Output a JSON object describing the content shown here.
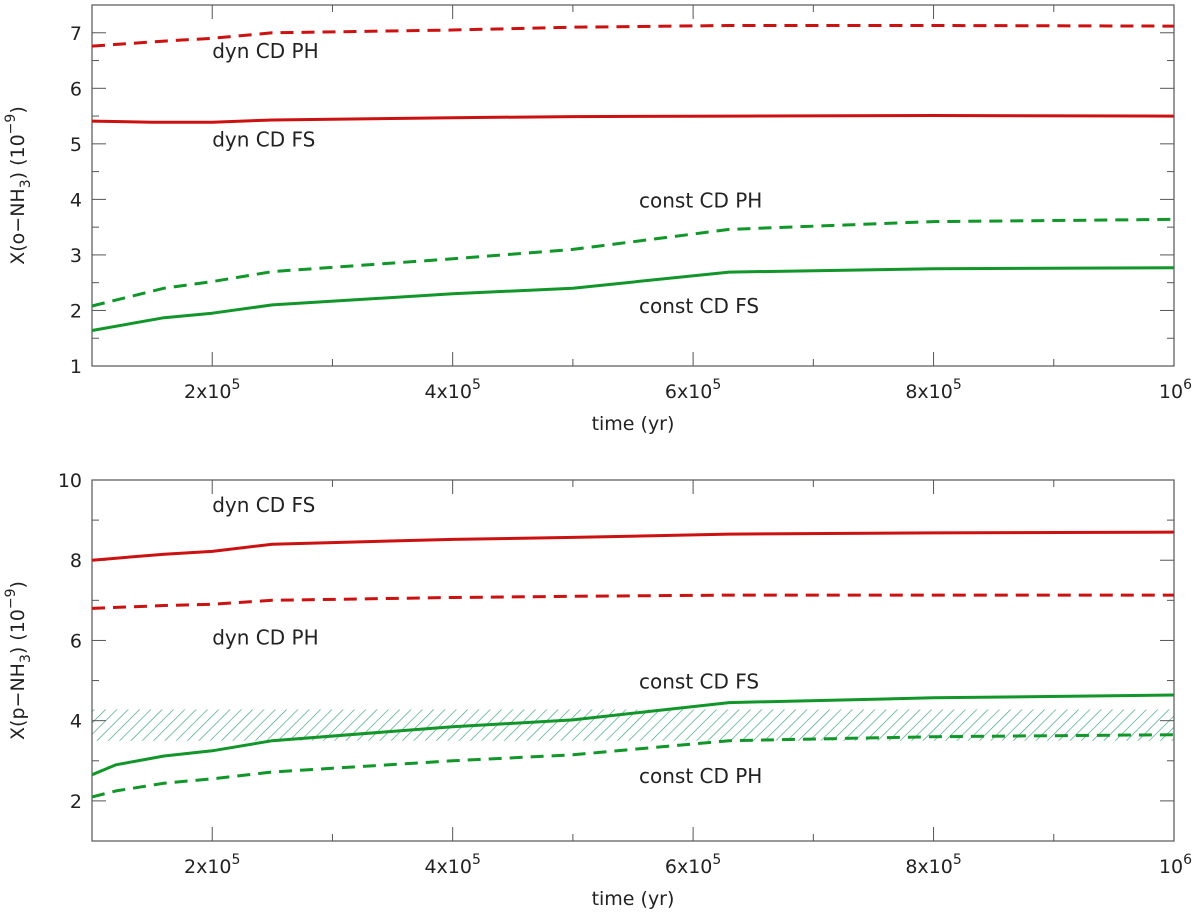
{
  "colors": {
    "red": "#cc1111",
    "green": "#11962a",
    "hatch": "#3aa17a",
    "axis": "#555555"
  },
  "chart_data": [
    {
      "type": "line",
      "title": "",
      "xlabel": "time (yr)",
      "ylabel_text": "X(o−NH",
      "ylabel_sub": "3",
      "ylabel_unit": ") (10",
      "ylabel_exp": "−9",
      "ylabel_close": ")",
      "xlim": [
        100000,
        1000000
      ],
      "ylim": [
        1,
        7.5
      ],
      "xticks": [
        {
          "value": 200000,
          "mantissa": "2x10",
          "exp": "5"
        },
        {
          "value": 400000,
          "mantissa": "4x10",
          "exp": "5"
        },
        {
          "value": 600000,
          "mantissa": "6x10",
          "exp": "5"
        },
        {
          "value": 800000,
          "mantissa": "8x10",
          "exp": "5"
        },
        {
          "value": 1000000,
          "mantissa": "10",
          "exp": "6"
        }
      ],
      "yticks": [
        1,
        2,
        3,
        4,
        5,
        6,
        7
      ],
      "yticklabels": [
        "1",
        "2",
        "3",
        "4",
        "5",
        "6",
        "7"
      ],
      "series": [
        {
          "name": "dyn CD PH",
          "color": "red",
          "style": "dashed",
          "x": [
            100000,
            160000,
            200000,
            250000,
            400000,
            500000,
            630000,
            800000,
            1000000
          ],
          "y": [
            6.76,
            6.85,
            6.9,
            7.0,
            7.05,
            7.1,
            7.13,
            7.13,
            7.12
          ]
        },
        {
          "name": "dyn CD FS",
          "color": "red",
          "style": "solid",
          "x": [
            100000,
            150000,
            200000,
            250000,
            400000,
            500000,
            630000,
            800000,
            1000000
          ],
          "y": [
            5.41,
            5.39,
            5.39,
            5.43,
            5.47,
            5.49,
            5.5,
            5.51,
            5.5
          ]
        },
        {
          "name": "const CD PH",
          "color": "green",
          "style": "dashed",
          "x": [
            100000,
            160000,
            200000,
            250000,
            400000,
            500000,
            630000,
            800000,
            1000000
          ],
          "y": [
            2.08,
            2.4,
            2.52,
            2.7,
            2.93,
            3.1,
            3.46,
            3.6,
            3.64
          ]
        },
        {
          "name": "const CD FS",
          "color": "green",
          "style": "solid",
          "x": [
            100000,
            160000,
            200000,
            250000,
            400000,
            500000,
            630000,
            800000,
            1000000
          ],
          "y": [
            1.64,
            1.87,
            1.95,
            2.1,
            2.3,
            2.4,
            2.69,
            2.75,
            2.77
          ]
        }
      ],
      "annotations": [
        {
          "text": "dyn CD PH",
          "x": 200000,
          "y": 6.55
        },
        {
          "text": "dyn CD FS",
          "x": 200000,
          "y": 4.95
        },
        {
          "text": "const CD PH",
          "x": 555000,
          "y": 3.85
        },
        {
          "text": "const CD FS",
          "x": 555000,
          "y": 1.95
        }
      ]
    },
    {
      "type": "line",
      "title": "",
      "xlabel": "time (yr)",
      "ylabel_text": "X(p−NH",
      "ylabel_sub": "3",
      "ylabel_unit": ") (10",
      "ylabel_exp": "−9",
      "ylabel_close": ")",
      "xlim": [
        100000,
        1000000
      ],
      "ylim": [
        1,
        10
      ],
      "xticks": [
        {
          "value": 200000,
          "mantissa": "2x10",
          "exp": "5"
        },
        {
          "value": 400000,
          "mantissa": "4x10",
          "exp": "5"
        },
        {
          "value": 600000,
          "mantissa": "6x10",
          "exp": "5"
        },
        {
          "value": 800000,
          "mantissa": "8x10",
          "exp": "5"
        },
        {
          "value": 1000000,
          "mantissa": "10",
          "exp": "6"
        }
      ],
      "yticks": [
        2,
        4,
        6,
        8,
        10
      ],
      "yticklabels": [
        "2",
        "4",
        "6",
        "8",
        "10"
      ],
      "band": {
        "y0": 3.5,
        "y1": 4.28,
        "style": "hatched",
        "color": "hatch"
      },
      "series": [
        {
          "name": "dyn CD FS",
          "color": "red",
          "style": "solid",
          "x": [
            100000,
            160000,
            200000,
            250000,
            400000,
            500000,
            630000,
            800000,
            1000000
          ],
          "y": [
            8.0,
            8.15,
            8.22,
            8.4,
            8.52,
            8.57,
            8.65,
            8.68,
            8.7
          ]
        },
        {
          "name": "dyn CD PH",
          "color": "red",
          "style": "dashed",
          "x": [
            100000,
            160000,
            200000,
            250000,
            400000,
            500000,
            630000,
            800000,
            1000000
          ],
          "y": [
            6.8,
            6.87,
            6.9,
            7.0,
            7.07,
            7.1,
            7.13,
            7.13,
            7.13
          ]
        },
        {
          "name": "const CD FS",
          "color": "green",
          "style": "solid",
          "x": [
            100000,
            120000,
            160000,
            200000,
            250000,
            400000,
            500000,
            630000,
            800000,
            1000000
          ],
          "y": [
            2.65,
            2.9,
            3.12,
            3.25,
            3.5,
            3.85,
            4.02,
            4.45,
            4.57,
            4.64
          ]
        },
        {
          "name": "const CD PH",
          "color": "green",
          "style": "dashed",
          "x": [
            100000,
            120000,
            160000,
            200000,
            250000,
            400000,
            500000,
            630000,
            800000,
            1000000
          ],
          "y": [
            2.1,
            2.25,
            2.44,
            2.55,
            2.72,
            3.0,
            3.15,
            3.5,
            3.6,
            3.65
          ]
        }
      ],
      "annotations": [
        {
          "text": "dyn CD FS",
          "x": 200000,
          "y": 9.2
        },
        {
          "text": "dyn CD PH",
          "x": 200000,
          "y": 5.9
        },
        {
          "text": "const CD FS",
          "x": 555000,
          "y": 4.8
        },
        {
          "text": "const CD PH",
          "x": 555000,
          "y": 2.45
        }
      ]
    }
  ]
}
